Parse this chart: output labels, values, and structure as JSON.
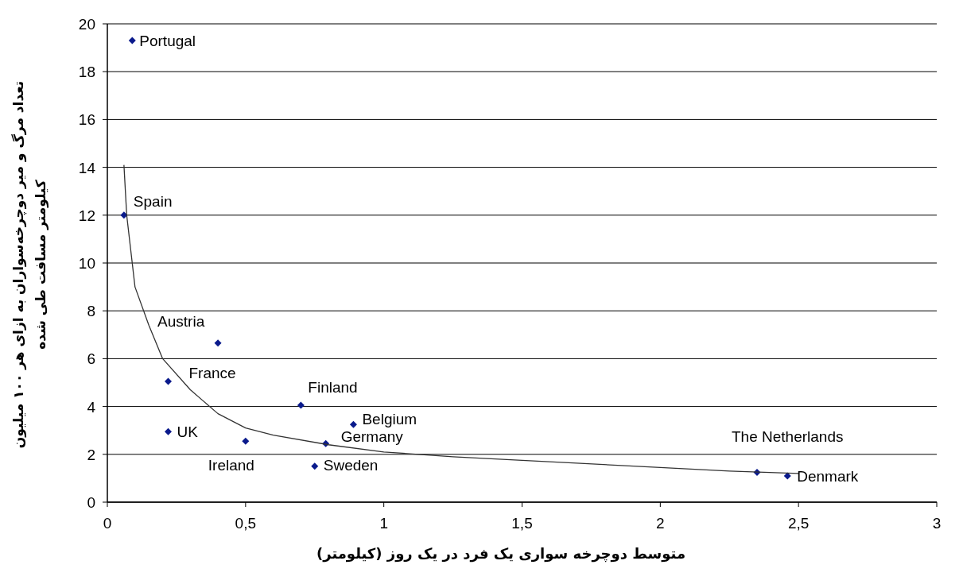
{
  "chart_data": {
    "type": "scatter",
    "xlabel": "متوسط دوچرخه سواری یک فرد در یک روز (کیلومتر)",
    "ylabel": "تعداد مرگ و میر دوچرخه‌سواران به ازای هر ۱۰۰ میلیون کیلومتر مسافت طی شده",
    "series": [
      {
        "color": "#0a1a8c",
        "marker": "diamond",
        "x": [
          0.09,
          0.06,
          0.4,
          0.22,
          0.22,
          0.5,
          0.7,
          0.89,
          0.79,
          0.75,
          2.35,
          2.46
        ],
        "values": [
          19.3,
          12.0,
          6.65,
          5.05,
          2.95,
          2.55,
          4.05,
          3.25,
          2.45,
          1.5,
          1.25,
          1.1
        ]
      },
      {
        "type": "line",
        "color": "#333333",
        "marker": "none",
        "x": [
          0.06,
          0.07,
          0.1,
          0.15,
          0.2,
          0.3,
          0.4,
          0.5,
          0.6,
          0.8,
          1.0,
          1.25,
          1.5,
          2.0,
          2.25,
          2.5
        ],
        "values": [
          14.1,
          12.0,
          9.0,
          7.4,
          6.0,
          4.7,
          3.7,
          3.1,
          2.8,
          2.4,
          2.1,
          1.9,
          1.75,
          1.45,
          1.3,
          1.2
        ]
      }
    ],
    "annotations": [
      {
        "text": "Portugal",
        "x": 0.09,
        "y": 19.3
      },
      {
        "text": "Spain",
        "x": 0.06,
        "y": 12.0
      },
      {
        "text": "Austria",
        "x": 0.4,
        "y": 6.65
      },
      {
        "text": "France",
        "x": 0.22,
        "y": 5.05
      },
      {
        "text": "UK",
        "x": 0.22,
        "y": 2.95
      },
      {
        "text": "Ireland",
        "x": 0.5,
        "y": 2.55
      },
      {
        "text": "Finland",
        "x": 0.7,
        "y": 4.05
      },
      {
        "text": "Belgium",
        "x": 0.89,
        "y": 3.25
      },
      {
        "text": "Germany",
        "x": 0.79,
        "y": 2.45
      },
      {
        "text": "Sweden",
        "x": 0.75,
        "y": 1.5
      },
      {
        "text": "The Netherlands",
        "x": 2.35,
        "y": 1.25
      },
      {
        "text": "Denmark",
        "x": 2.46,
        "y": 1.1
      }
    ],
    "xlim": [
      0,
      3
    ],
    "xticks": [
      0,
      {
        "value": 0.5,
        "label": "0,5"
      },
      1,
      {
        "value": 1.5,
        "label": "1,5"
      },
      2,
      {
        "value": 2.5,
        "label": "2,5"
      },
      3
    ],
    "ylim": [
      0,
      20
    ],
    "yticks": [
      0,
      2,
      4,
      6,
      8,
      10,
      12,
      14,
      16,
      18,
      20
    ],
    "grid": "y"
  }
}
